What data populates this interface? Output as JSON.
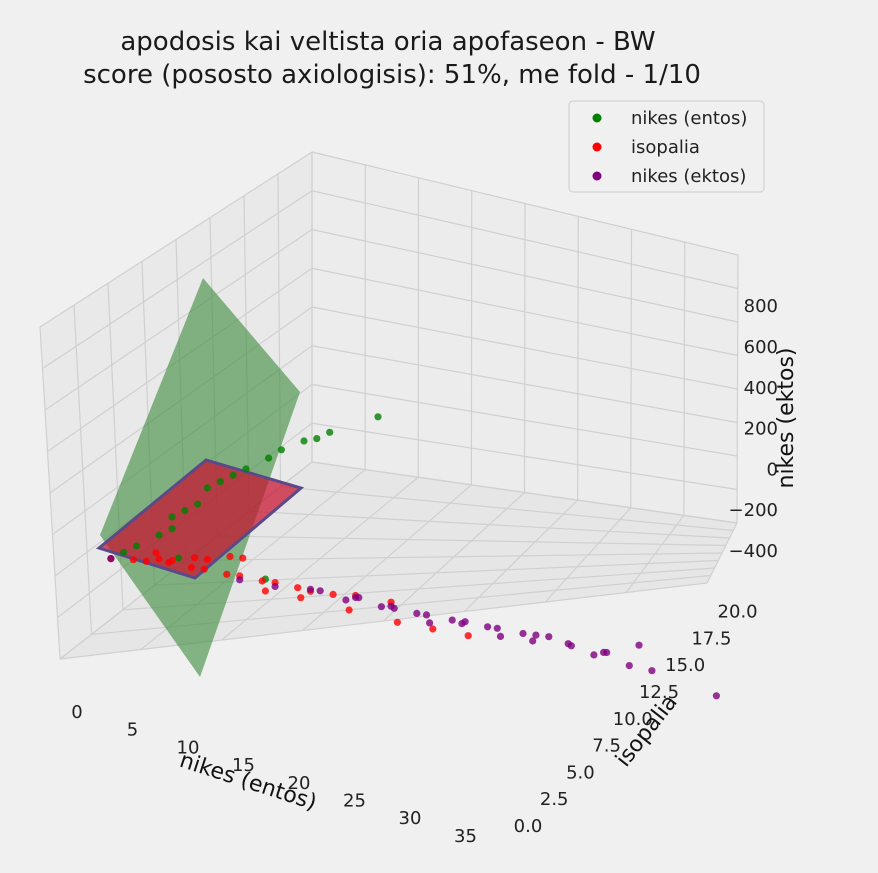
{
  "chart_data": {
    "type": "scatter",
    "title_line1": "apodosis kai veltista oria apofaseon - BW",
    "title_line2": "score (pososto axiologisis): 51%, me fold - 1/10",
    "xlabel": "nikes (entos)",
    "ylabel": "isopalia",
    "zlabel": "nikes (ektos)",
    "x_ticks": [
      "0",
      "5",
      "10",
      "15",
      "20",
      "25",
      "30",
      "35"
    ],
    "y_ticks": [
      "0.0",
      "2.5",
      "5.0",
      "7.5",
      "10.0",
      "12.5",
      "15.0",
      "17.5",
      "20.0"
    ],
    "z_ticks": [
      "−400",
      "−200",
      "0",
      "200",
      "400",
      "600",
      "800"
    ],
    "legend": [
      {
        "label": "nikes (entos)",
        "color": "#008000"
      },
      {
        "label": "isopalia",
        "color": "#ff0000"
      },
      {
        "label": "nikes (ektos)",
        "color": "#800080"
      }
    ],
    "planes": [
      {
        "name": "green-plane",
        "color": "#3a8a3a"
      },
      {
        "name": "red-plane",
        "color": "#c8102e"
      }
    ],
    "series": [
      {
        "name": "nikes (entos)",
        "color": "#008000",
        "points": [
          [
            1,
            0,
            0
          ],
          [
            2,
            0,
            30
          ],
          [
            3,
            0,
            60
          ],
          [
            4,
            1,
            90
          ],
          [
            5,
            1,
            120
          ],
          [
            5,
            1,
            150
          ],
          [
            6,
            1,
            180
          ],
          [
            7,
            1,
            210
          ],
          [
            7,
            2,
            240
          ],
          [
            8,
            2,
            270
          ],
          [
            9,
            2,
            300
          ],
          [
            10,
            2,
            330
          ],
          [
            11,
            3,
            360
          ],
          [
            12,
            3,
            395
          ],
          [
            13,
            4,
            420
          ],
          [
            14,
            4,
            440
          ],
          [
            15,
            4,
            470
          ],
          [
            18,
            5,
            540
          ],
          [
            4,
            3,
            10
          ],
          [
            10,
            4,
            30
          ]
        ]
      },
      {
        "name": "isopalia",
        "color": "#ff0000",
        "points": [
          [
            1,
            0,
            0
          ],
          [
            2,
            1,
            0
          ],
          [
            3,
            1,
            10
          ],
          [
            3,
            2,
            20
          ],
          [
            4,
            2,
            10
          ],
          [
            5,
            3,
            0
          ],
          [
            6,
            3,
            10
          ],
          [
            7,
            4,
            0
          ],
          [
            8,
            4,
            10
          ],
          [
            9,
            5,
            0
          ],
          [
            10,
            5,
            10
          ],
          [
            11,
            6,
            0
          ],
          [
            12,
            6,
            5
          ],
          [
            13,
            7,
            0
          ],
          [
            4,
            1,
            30
          ],
          [
            5,
            1,
            40
          ],
          [
            6,
            2,
            50
          ],
          [
            7,
            2,
            60
          ],
          [
            8,
            3,
            70
          ],
          [
            9,
            3,
            80
          ],
          [
            10,
            4,
            0
          ],
          [
            12,
            5,
            0
          ],
          [
            15,
            6,
            0
          ],
          [
            18,
            7,
            0
          ],
          [
            20,
            8,
            0
          ],
          [
            22,
            9,
            0
          ],
          [
            14,
            8,
            0
          ],
          [
            16,
            9,
            0
          ]
        ]
      },
      {
        "name": "nikes (ektos)",
        "color": "#800080",
        "points": [
          [
            1,
            0,
            0
          ],
          [
            8,
            4,
            0
          ],
          [
            10,
            5,
            0
          ],
          [
            12,
            6,
            10
          ],
          [
            14,
            7,
            0
          ],
          [
            15,
            7,
            20
          ],
          [
            16,
            8,
            0
          ],
          [
            17,
            8,
            10
          ],
          [
            18,
            9,
            0
          ],
          [
            19,
            9,
            -10
          ],
          [
            20,
            10,
            0
          ],
          [
            21,
            10,
            10
          ],
          [
            22,
            11,
            0
          ],
          [
            23,
            11,
            -10
          ],
          [
            24,
            12,
            0
          ],
          [
            25,
            12,
            10
          ],
          [
            26,
            12,
            20
          ],
          [
            27,
            13,
            0
          ],
          [
            28,
            14,
            -20
          ],
          [
            29,
            14,
            0
          ],
          [
            30,
            15,
            -30
          ],
          [
            30,
            16,
            10
          ],
          [
            31,
            16,
            -40
          ],
          [
            33,
            20,
            -120
          ],
          [
            20,
            11,
            -20
          ],
          [
            22,
            12,
            -15
          ],
          [
            24,
            13,
            -30
          ],
          [
            26,
            14,
            -20
          ],
          [
            28,
            15,
            -25
          ],
          [
            18,
            10,
            -15
          ],
          [
            16,
            9,
            -10
          ],
          [
            14,
            8,
            -5
          ],
          [
            12,
            7,
            -5
          ]
        ]
      }
    ]
  }
}
